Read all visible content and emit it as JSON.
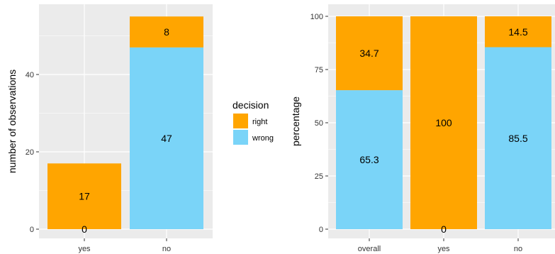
{
  "colors": {
    "right": "#FFA500",
    "wrong": "#7AD4F8",
    "panel": "#EBEBEB",
    "grid": "#FFFFFF"
  },
  "legend": {
    "title": "decision",
    "items": [
      {
        "label": "right",
        "color": "#FFA500"
      },
      {
        "label": "wrong",
        "color": "#7AD4F8"
      }
    ]
  },
  "chart_data": [
    {
      "type": "bar",
      "stacked": true,
      "ylabel": "number of observations",
      "xlabel": "",
      "categories": [
        "yes",
        "no"
      ],
      "ylim": [
        0,
        55
      ],
      "yticks": [
        0,
        20,
        40
      ],
      "series": [
        {
          "name": "wrong",
          "values": [
            0,
            47
          ]
        },
        {
          "name": "right",
          "values": [
            17,
            8
          ]
        }
      ],
      "labels": {
        "wrong": [
          "0",
          "47"
        ],
        "right": [
          "17",
          "8"
        ]
      }
    },
    {
      "type": "bar",
      "stacked": true,
      "ylabel": "percentage",
      "xlabel": "",
      "categories": [
        "overall",
        "yes",
        "no"
      ],
      "ylim": [
        0,
        100
      ],
      "yticks": [
        0,
        25,
        50,
        75,
        100
      ],
      "series": [
        {
          "name": "wrong",
          "values": [
            65.3,
            0,
            85.5
          ]
        },
        {
          "name": "right",
          "values": [
            34.7,
            100,
            14.5
          ]
        }
      ],
      "labels": {
        "wrong": [
          "65.3",
          "0",
          "85.5"
        ],
        "right": [
          "34.7",
          "100",
          "14.5"
        ]
      }
    }
  ]
}
